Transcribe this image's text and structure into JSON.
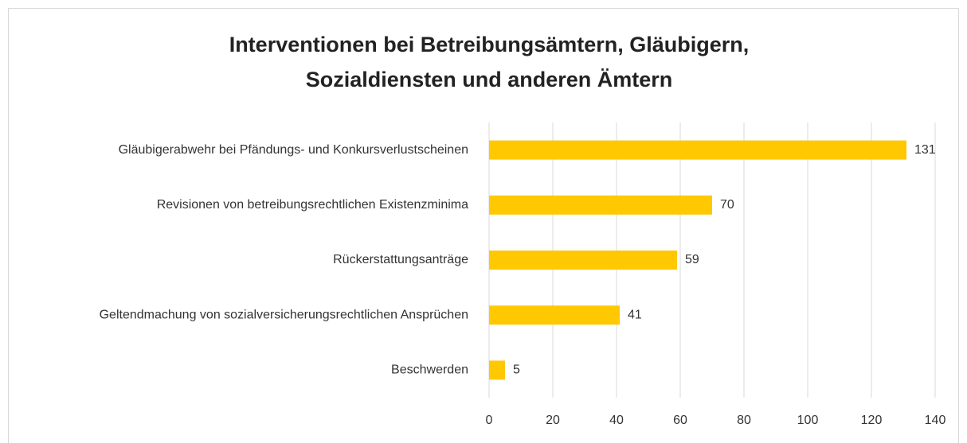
{
  "chart_data": {
    "type": "barh",
    "title": [
      "Interventionen bei Betreibungsämtern, Gläubigern,",
      "Sozialdiensten und anderen Ämtern"
    ],
    "categories": [
      "Gläubigerabwehr bei Pfändungs- und Konkursverlustscheinen",
      "Revisionen von betreibungsrechtlichen Existenzminima",
      "Rückerstattungsanträge",
      "Geltendmachung von sozialversicherungsrechtlichen Ansprüchen",
      "Beschwerden"
    ],
    "values": [
      131,
      70,
      59,
      41,
      5
    ],
    "color": "#ffc800",
    "xlim": [
      0,
      140
    ],
    "xticks": [
      0,
      20,
      40,
      60,
      80,
      100,
      120,
      140
    ],
    "grid": true
  }
}
